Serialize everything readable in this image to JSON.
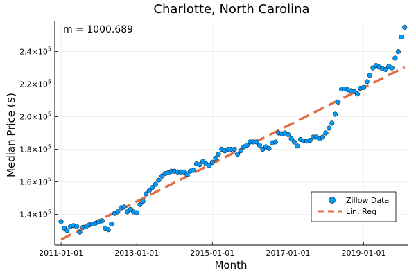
{
  "chart_data": {
    "type": "scatter",
    "title": "Charlotte, North Carolina",
    "xlabel": "Month",
    "ylabel": "Median Price ($)",
    "annotation": "m = 1000.689",
    "x_start": "2011-01-01",
    "x_step": "1 month",
    "xlim": [
      "2010-11-01",
      "2020-03-01"
    ],
    "ylim": [
      121000,
      259000
    ],
    "xticks": [
      "2011-01-01",
      "2013-01-01",
      "2015-01-01",
      "2017-01-01",
      "2019-01-01"
    ],
    "yticks": [
      {
        "value": 140000,
        "mantissa": "1.4×10",
        "exp": "5"
      },
      {
        "value": 160000,
        "mantissa": "1.6×10",
        "exp": "5"
      },
      {
        "value": 180000,
        "mantissa": "1.8×10",
        "exp": "5"
      },
      {
        "value": 200000,
        "mantissa": "2.0×10",
        "exp": "5"
      },
      {
        "value": 220000,
        "mantissa": "2.2×10",
        "exp": "5"
      },
      {
        "value": 240000,
        "mantissa": "2.4×10",
        "exp": "5"
      }
    ],
    "grid": true,
    "legend": "right",
    "series": [
      {
        "name": "Zillow Data",
        "kind": "scatter",
        "color": "#009AFA",
        "values": [
          135500,
          131500,
          130000,
          132500,
          133000,
          132500,
          129000,
          132000,
          132500,
          133500,
          134000,
          134500,
          135500,
          136000,
          131500,
          130500,
          134000,
          140500,
          141500,
          144000,
          144500,
          141500,
          143000,
          141500,
          141000,
          146000,
          148000,
          152500,
          154500,
          156500,
          158500,
          161000,
          163500,
          165000,
          165500,
          166500,
          166500,
          166000,
          166000,
          166000,
          164500,
          166500,
          167000,
          171000,
          170500,
          172500,
          171000,
          170000,
          172000,
          174500,
          177000,
          180000,
          179000,
          180000,
          180000,
          180000,
          177000,
          179000,
          181500,
          182500,
          184500,
          184500,
          184500,
          182500,
          180000,
          181500,
          180500,
          184000,
          184500,
          190000,
          189500,
          190000,
          189000,
          186500,
          184500,
          182000,
          186000,
          185000,
          185000,
          185500,
          187500,
          187500,
          186500,
          187500,
          190000,
          193000,
          196000,
          201500,
          209000,
          217000,
          217000,
          216500,
          216000,
          215500,
          214000,
          217500,
          218000,
          221500,
          225500,
          230000,
          231500,
          230500,
          229500,
          229000,
          231000,
          230000,
          236000,
          240000,
          249000,
          255000
        ]
      },
      {
        "name": "Lin. Reg",
        "kind": "line",
        "color": "#E26F46",
        "values": [
          124500,
          230500
        ]
      }
    ]
  }
}
